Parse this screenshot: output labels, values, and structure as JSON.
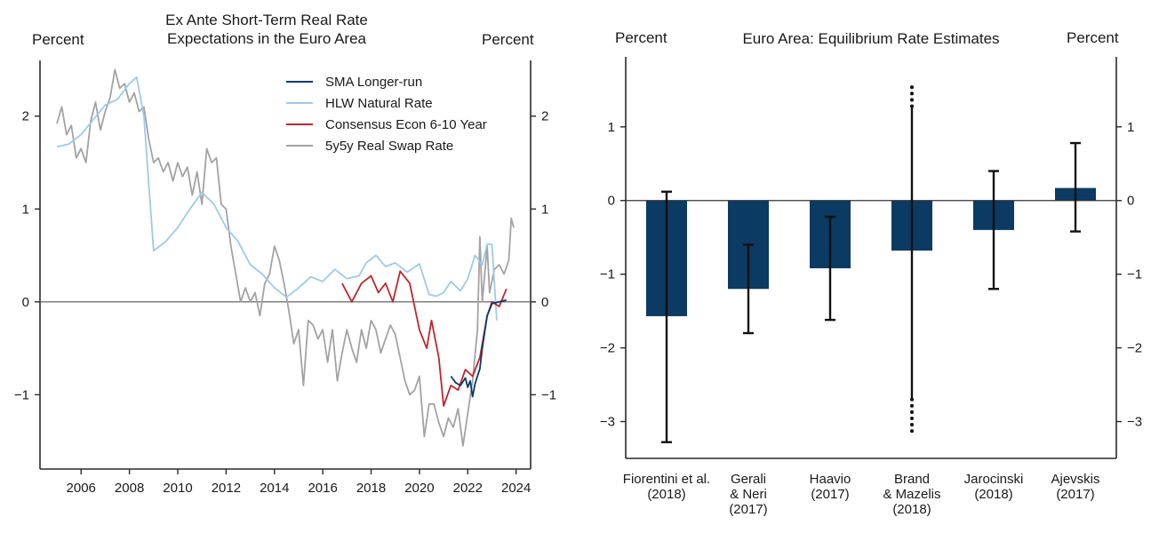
{
  "chart_data": [
    {
      "type": "line",
      "title": "Ex Ante Short-Term Real Rate Expectations in the Euro Area",
      "title_lines": [
        "Ex Ante Short-Term Real Rate",
        "Expectations in the Euro Area"
      ],
      "ylabel_left": "Percent",
      "ylabel_right": "Percent",
      "xlim": [
        2004.3,
        2024.6
      ],
      "ylim": [
        -1.8,
        2.6
      ],
      "x_ticks": [
        2006,
        2008,
        2010,
        2012,
        2014,
        2016,
        2018,
        2020,
        2022,
        2024
      ],
      "y_ticks": [
        -1,
        0,
        1,
        2
      ],
      "y_tick_labels": [
        "−1",
        "0",
        "1",
        "2"
      ],
      "legend_position": "top-right",
      "series": [
        {
          "name": "SMA Longer-run",
          "color": "#0b3a6b",
          "points": [
            [
              2021.3,
              -0.8
            ],
            [
              2021.5,
              -0.87
            ],
            [
              2021.7,
              -0.9
            ],
            [
              2021.9,
              -0.82
            ],
            [
              2022.0,
              -0.92
            ],
            [
              2022.1,
              -0.85
            ],
            [
              2022.2,
              -1.02
            ],
            [
              2022.3,
              -0.88
            ],
            [
              2022.5,
              -0.72
            ],
            [
              2022.6,
              -0.5
            ],
            [
              2022.8,
              -0.15
            ],
            [
              2023.0,
              -0.02
            ],
            [
              2023.3,
              0.0
            ],
            [
              2023.6,
              0.02
            ]
          ]
        },
        {
          "name": "HLW Natural Rate",
          "color": "#9ecae9",
          "points": [
            [
              2005.0,
              1.67
            ],
            [
              2005.5,
              1.7
            ],
            [
              2006.0,
              1.8
            ],
            [
              2006.5,
              1.96
            ],
            [
              2007.0,
              2.12
            ],
            [
              2007.5,
              2.18
            ],
            [
              2008.0,
              2.35
            ],
            [
              2008.3,
              2.42
            ],
            [
              2008.6,
              2.0
            ],
            [
              2009.0,
              0.55
            ],
            [
              2009.5,
              0.65
            ],
            [
              2010.0,
              0.8
            ],
            [
              2010.5,
              1.0
            ],
            [
              2011.0,
              1.18
            ],
            [
              2011.5,
              1.05
            ],
            [
              2012.0,
              0.8
            ],
            [
              2012.5,
              0.65
            ],
            [
              2013.0,
              0.4
            ],
            [
              2013.5,
              0.3
            ],
            [
              2014.0,
              0.15
            ],
            [
              2014.5,
              0.05
            ],
            [
              2015.0,
              0.15
            ],
            [
              2015.5,
              0.27
            ],
            [
              2016.0,
              0.22
            ],
            [
              2016.5,
              0.35
            ],
            [
              2017.0,
              0.25
            ],
            [
              2017.5,
              0.28
            ],
            [
              2017.8,
              0.42
            ],
            [
              2018.2,
              0.5
            ],
            [
              2018.6,
              0.38
            ],
            [
              2019.0,
              0.42
            ],
            [
              2019.5,
              0.32
            ],
            [
              2020.0,
              0.41
            ],
            [
              2020.4,
              0.08
            ],
            [
              2020.7,
              0.06
            ],
            [
              2021.0,
              0.1
            ],
            [
              2021.3,
              0.22
            ],
            [
              2021.7,
              0.12
            ],
            [
              2022.0,
              0.25
            ],
            [
              2022.3,
              0.5
            ],
            [
              2022.6,
              0.4
            ],
            [
              2022.8,
              0.62
            ],
            [
              2023.0,
              0.62
            ],
            [
              2023.2,
              -0.2
            ]
          ]
        },
        {
          "name": "Consensus Econ 6-10 Year",
          "color": "#c0262d",
          "points": [
            [
              2016.8,
              0.2
            ],
            [
              2017.2,
              0.0
            ],
            [
              2017.6,
              0.2
            ],
            [
              2018.0,
              0.28
            ],
            [
              2018.3,
              0.1
            ],
            [
              2018.6,
              0.2
            ],
            [
              2018.9,
              0.0
            ],
            [
              2019.2,
              0.33
            ],
            [
              2019.6,
              0.2
            ],
            [
              2020.0,
              -0.3
            ],
            [
              2020.3,
              -0.5
            ],
            [
              2020.5,
              -0.2
            ],
            [
              2020.8,
              -0.6
            ],
            [
              2021.0,
              -1.12
            ],
            [
              2021.3,
              -0.9
            ],
            [
              2021.6,
              -0.95
            ],
            [
              2021.9,
              -0.73
            ],
            [
              2022.2,
              -0.8
            ],
            [
              2022.5,
              -0.6
            ],
            [
              2022.8,
              -0.15
            ],
            [
              2023.0,
              0.0
            ],
            [
              2023.3,
              -0.05
            ],
            [
              2023.6,
              0.14
            ]
          ]
        },
        {
          "name": "5y5y Real Swap Rate",
          "color": "#a3a3a3",
          "points": [
            [
              2005.0,
              1.92
            ],
            [
              2005.2,
              2.1
            ],
            [
              2005.4,
              1.8
            ],
            [
              2005.6,
              1.9
            ],
            [
              2005.8,
              1.55
            ],
            [
              2006.0,
              1.65
            ],
            [
              2006.2,
              1.5
            ],
            [
              2006.4,
              1.95
            ],
            [
              2006.6,
              2.15
            ],
            [
              2006.8,
              1.85
            ],
            [
              2007.0,
              2.05
            ],
            [
              2007.2,
              2.2
            ],
            [
              2007.4,
              2.5
            ],
            [
              2007.6,
              2.3
            ],
            [
              2007.8,
              2.35
            ],
            [
              2008.0,
              2.15
            ],
            [
              2008.2,
              2.25
            ],
            [
              2008.4,
              2.05
            ],
            [
              2008.6,
              2.1
            ],
            [
              2008.8,
              1.75
            ],
            [
              2009.0,
              1.5
            ],
            [
              2009.2,
              1.55
            ],
            [
              2009.4,
              1.4
            ],
            [
              2009.6,
              1.5
            ],
            [
              2009.8,
              1.3
            ],
            [
              2010.0,
              1.5
            ],
            [
              2010.2,
              1.35
            ],
            [
              2010.4,
              1.45
            ],
            [
              2010.6,
              1.15
            ],
            [
              2010.8,
              1.4
            ],
            [
              2011.0,
              1.05
            ],
            [
              2011.2,
              1.65
            ],
            [
              2011.4,
              1.5
            ],
            [
              2011.6,
              1.55
            ],
            [
              2011.8,
              1.05
            ],
            [
              2012.0,
              1.0
            ],
            [
              2012.2,
              0.6
            ],
            [
              2012.4,
              0.3
            ],
            [
              2012.6,
              0.0
            ],
            [
              2012.8,
              0.15
            ],
            [
              2013.0,
              0.0
            ],
            [
              2013.2,
              0.1
            ],
            [
              2013.4,
              -0.15
            ],
            [
              2013.6,
              0.2
            ],
            [
              2013.8,
              0.3
            ],
            [
              2014.0,
              0.6
            ],
            [
              2014.2,
              0.45
            ],
            [
              2014.4,
              0.2
            ],
            [
              2014.6,
              -0.1
            ],
            [
              2014.8,
              -0.45
            ],
            [
              2015.0,
              -0.3
            ],
            [
              2015.2,
              -0.9
            ],
            [
              2015.4,
              -0.2
            ],
            [
              2015.6,
              -0.25
            ],
            [
              2015.8,
              -0.4
            ],
            [
              2016.0,
              -0.3
            ],
            [
              2016.2,
              -0.65
            ],
            [
              2016.4,
              -0.3
            ],
            [
              2016.6,
              -0.85
            ],
            [
              2016.8,
              -0.55
            ],
            [
              2017.0,
              -0.3
            ],
            [
              2017.2,
              -0.5
            ],
            [
              2017.4,
              -0.65
            ],
            [
              2017.6,
              -0.3
            ],
            [
              2017.8,
              -0.5
            ],
            [
              2018.0,
              -0.2
            ],
            [
              2018.2,
              -0.3
            ],
            [
              2018.4,
              -0.55
            ],
            [
              2018.6,
              -0.4
            ],
            [
              2018.8,
              -0.25
            ],
            [
              2019.0,
              -0.35
            ],
            [
              2019.2,
              -0.6
            ],
            [
              2019.4,
              -0.85
            ],
            [
              2019.6,
              -1.0
            ],
            [
              2019.8,
              -0.95
            ],
            [
              2020.0,
              -0.8
            ],
            [
              2020.2,
              -1.45
            ],
            [
              2020.4,
              -1.1
            ],
            [
              2020.6,
              -1.1
            ],
            [
              2020.8,
              -1.3
            ],
            [
              2021.0,
              -1.45
            ],
            [
              2021.2,
              -1.25
            ],
            [
              2021.4,
              -1.35
            ],
            [
              2021.6,
              -1.15
            ],
            [
              2021.8,
              -1.55
            ],
            [
              2022.0,
              -1.2
            ],
            [
              2022.2,
              -0.85
            ],
            [
              2022.4,
              -0.3
            ],
            [
              2022.5,
              0.7
            ],
            [
              2022.6,
              0.0
            ],
            [
              2022.8,
              0.6
            ],
            [
              2022.9,
              0.1
            ],
            [
              2023.1,
              0.35
            ],
            [
              2023.3,
              0.4
            ],
            [
              2023.5,
              0.3
            ],
            [
              2023.7,
              0.45
            ],
            [
              2023.8,
              0.9
            ],
            [
              2023.9,
              0.8
            ]
          ]
        }
      ]
    },
    {
      "type": "bar",
      "title": "Euro Area: Equilibrium Rate Estimates",
      "ylabel_left": "Percent",
      "ylabel_right": "Percent",
      "ylim": [
        -3.5,
        1.95
      ],
      "y_ticks": [
        -3,
        -2,
        -1,
        0,
        1
      ],
      "y_tick_labels": [
        "−3",
        "−2",
        "−1",
        "0",
        "1"
      ],
      "bar_color": "#0b3a63",
      "categories": [
        "Fiorentini et al. (2018)",
        "Gerali & Neri (2017)",
        "Haavio (2017)",
        "Brand & Mazelis (2018)",
        "Jarocinski (2018)",
        "Ajevskis (2017)"
      ],
      "category_lines": [
        [
          "Fiorentini et al.",
          "(2018)"
        ],
        [
          "Gerali",
          "& Neri",
          "(2017)"
        ],
        [
          "Haavio",
          "(2017)"
        ],
        [
          "Brand",
          "& Mazelis",
          "(2018)"
        ],
        [
          "Jarocinski",
          "(2018)"
        ],
        [
          "Ajevskis",
          "(2017)"
        ]
      ],
      "values": [
        -1.57,
        -1.2,
        -0.92,
        -0.68,
        -0.4,
        0.17
      ],
      "error_low": [
        -3.28,
        -1.8,
        -1.62,
        -2.7,
        -1.2,
        -0.42
      ],
      "error_high": [
        0.12,
        -0.6,
        -0.22,
        1.28,
        0.4,
        0.78
      ],
      "error_dotted_low": [
        null,
        null,
        null,
        -3.2,
        null,
        null
      ],
      "error_dotted_high": [
        null,
        null,
        null,
        1.62,
        null,
        null
      ]
    }
  ]
}
